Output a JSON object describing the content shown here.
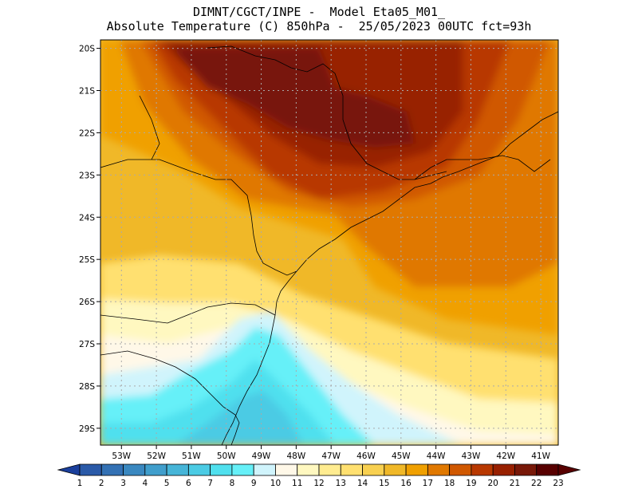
{
  "header": {
    "line1": "DIMNT/CGCT/INPE -  Model Eta05_M01_",
    "line2": "Absolute Temperature (C) 850hPa -  25/05/2023 00UTC fct=93h"
  },
  "map": {
    "lat_labels": [
      "20S",
      "21S",
      "22S",
      "23S",
      "24S",
      "25S",
      "26S",
      "27S",
      "28S",
      "29S"
    ],
    "lon_labels": [
      "53W",
      "52W",
      "51W",
      "50W",
      "49W",
      "48W",
      "47W",
      "46W",
      "45W",
      "44W",
      "43W",
      "42W",
      "41W"
    ],
    "extent": {
      "lon_min": -53.6,
      "lon_max": -40.5,
      "lat_min": -29.4,
      "lat_max": -19.8
    }
  },
  "colorbar": {
    "labels": [
      "1",
      "2",
      "3",
      "4",
      "5",
      "6",
      "7",
      "8",
      "9",
      "10",
      "11",
      "12",
      "13",
      "14",
      "15",
      "16",
      "17",
      "18",
      "19",
      "20",
      "21",
      "22",
      "23"
    ],
    "colors": [
      "#1a3f9c",
      "#2a5aa8",
      "#3371b4",
      "#3a88c0",
      "#409ecc",
      "#46b5d8",
      "#4bcbe4",
      "#50e0ee",
      "#66f0f8",
      "#d0f4fc",
      "#fff8e8",
      "#fff8c0",
      "#ffec90",
      "#ffe070",
      "#f8d050",
      "#f0b828",
      "#f0a000",
      "#e07800",
      "#d05800",
      "#b83800",
      "#982000",
      "#781808",
      "#580000"
    ]
  }
}
